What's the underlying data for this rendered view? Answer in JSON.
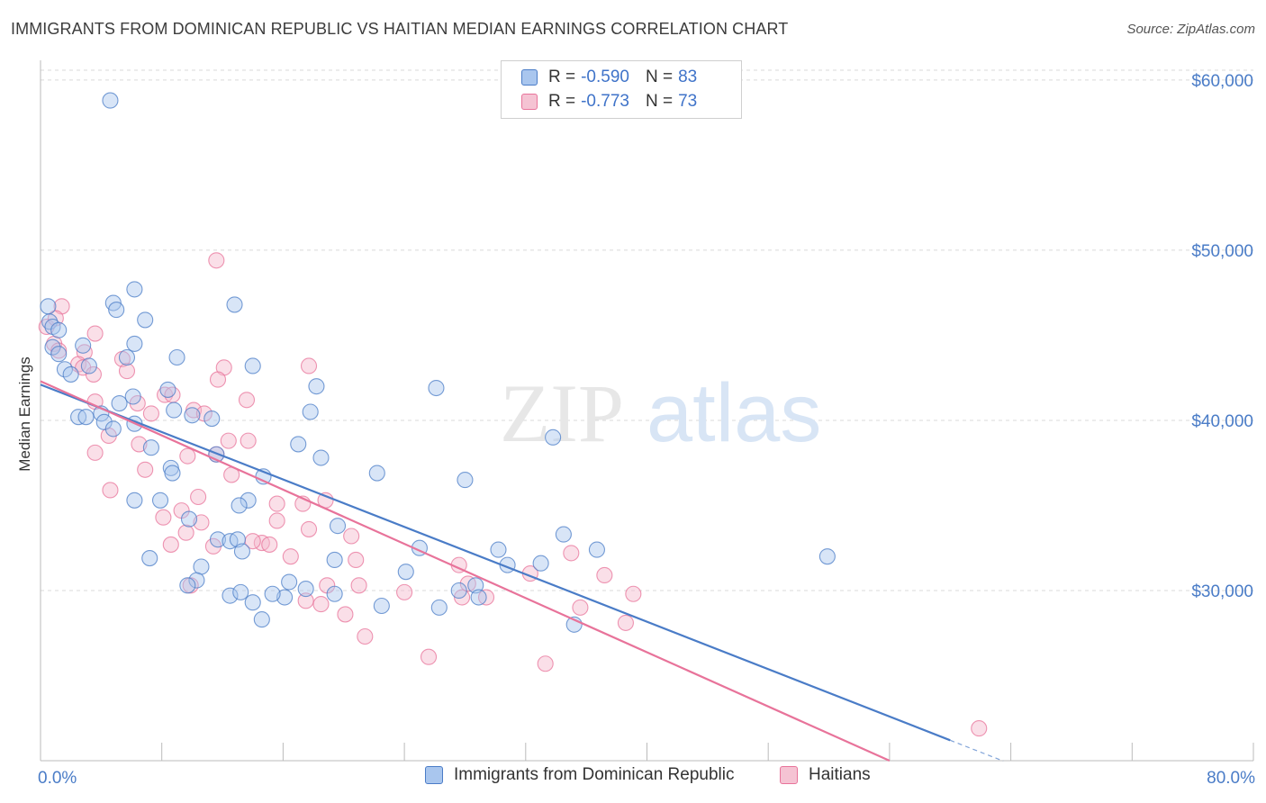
{
  "title": "IMMIGRANTS FROM DOMINICAN REPUBLIC VS HAITIAN MEDIAN EARNINGS CORRELATION CHART",
  "source": "Source: ZipAtlas.com",
  "watermark": {
    "part1": "ZIP",
    "part2": "atlas"
  },
  "colors": {
    "blue": "#4a7cc7",
    "blue_fill": "#a9c6ee",
    "pink": "#e8739a",
    "pink_fill": "#f5b8cb",
    "grid": "#d9d9d9"
  },
  "legend": {
    "items": [
      {
        "r_label": "R = ",
        "r_value": "-0.590",
        "n_label": "N = ",
        "n_value": "83"
      },
      {
        "r_label": "R = ",
        "r_value": "-0.773",
        "n_label": "N = ",
        "n_value": "73"
      }
    ]
  },
  "bottom_legend": [
    "Immigrants from Dominican Republic",
    "Haitians"
  ],
  "chart_data": {
    "type": "scatter",
    "xlabel": "",
    "ylabel": "Median Earnings",
    "xlim": [
      0,
      80
    ],
    "ylim": [
      20000,
      61000
    ],
    "x_tick_labels": [
      "0.0%",
      "80.0%"
    ],
    "y_ticks": [
      {
        "value": 30000,
        "label": "$30,000"
      },
      {
        "value": 40000,
        "label": "$40,000"
      },
      {
        "value": 50000,
        "label": "$50,000"
      },
      {
        "value": 60000,
        "label": "$60,000"
      }
    ],
    "grid": true,
    "series": [
      {
        "name": "Immigrants from Dominican Republic",
        "color": "#4a7cc7",
        "trend": {
          "x0": 0,
          "y0": 42100,
          "x1": 60,
          "y1": 21200,
          "dash_to_x": 63.5
        },
        "points": [
          [
            4.6,
            58800
          ],
          [
            0.5,
            46700
          ],
          [
            4.8,
            46900
          ],
          [
            5.0,
            46500
          ],
          [
            6.2,
            47700
          ],
          [
            6.9,
            45900
          ],
          [
            12.8,
            46800
          ],
          [
            0.6,
            45800
          ],
          [
            0.8,
            45500
          ],
          [
            1.2,
            45300
          ],
          [
            0.8,
            44300
          ],
          [
            2.8,
            44400
          ],
          [
            6.2,
            44500
          ],
          [
            1.2,
            43900
          ],
          [
            5.7,
            43700
          ],
          [
            9.0,
            43700
          ],
          [
            1.6,
            43000
          ],
          [
            2.0,
            42700
          ],
          [
            3.2,
            43200
          ],
          [
            14.0,
            43200
          ],
          [
            18.2,
            42000
          ],
          [
            26.1,
            41900
          ],
          [
            5.2,
            41000
          ],
          [
            8.4,
            41800
          ],
          [
            6.1,
            41400
          ],
          [
            2.5,
            40200
          ],
          [
            3.0,
            40200
          ],
          [
            4.0,
            40400
          ],
          [
            8.8,
            40600
          ],
          [
            10.0,
            40300
          ],
          [
            17.8,
            40500
          ],
          [
            11.3,
            40100
          ],
          [
            4.2,
            39900
          ],
          [
            4.8,
            39500
          ],
          [
            6.2,
            39800
          ],
          [
            33.8,
            39000
          ],
          [
            7.3,
            38400
          ],
          [
            17.0,
            38600
          ],
          [
            11.6,
            38000
          ],
          [
            18.5,
            37800
          ],
          [
            8.6,
            37200
          ],
          [
            8.7,
            36900
          ],
          [
            14.7,
            36700
          ],
          [
            22.2,
            36900
          ],
          [
            28.0,
            36500
          ],
          [
            6.2,
            35300
          ],
          [
            7.9,
            35300
          ],
          [
            13.7,
            35300
          ],
          [
            13.1,
            35000
          ],
          [
            9.8,
            34200
          ],
          [
            19.6,
            33800
          ],
          [
            34.5,
            33300
          ],
          [
            25.0,
            32500
          ],
          [
            30.2,
            32400
          ],
          [
            36.7,
            32400
          ],
          [
            7.2,
            31900
          ],
          [
            11.7,
            33000
          ],
          [
            12.5,
            32900
          ],
          [
            13.0,
            33000
          ],
          [
            13.3,
            32300
          ],
          [
            19.4,
            31800
          ],
          [
            33.0,
            31600
          ],
          [
            30.8,
            31500
          ],
          [
            10.6,
            31400
          ],
          [
            24.1,
            31100
          ],
          [
            10.3,
            30600
          ],
          [
            9.7,
            30300
          ],
          [
            16.4,
            30500
          ],
          [
            16.1,
            29600
          ],
          [
            17.5,
            30100
          ],
          [
            19.4,
            29800
          ],
          [
            22.5,
            29100
          ],
          [
            27.6,
            30000
          ],
          [
            28.7,
            30300
          ],
          [
            26.3,
            29000
          ],
          [
            28.9,
            29600
          ],
          [
            12.5,
            29700
          ],
          [
            13.2,
            29900
          ],
          [
            14.0,
            29300
          ],
          [
            14.6,
            28300
          ],
          [
            15.3,
            29800
          ],
          [
            35.2,
            28000
          ],
          [
            51.9,
            32000
          ]
        ]
      },
      {
        "name": "Haitians",
        "color": "#e8739a",
        "trend": {
          "x0": 0,
          "y0": 42300,
          "x1": 56,
          "y1": 20000
        },
        "points": [
          [
            0.4,
            45500
          ],
          [
            1.4,
            46700
          ],
          [
            1.0,
            46000
          ],
          [
            3.6,
            45100
          ],
          [
            0.9,
            44500
          ],
          [
            1.2,
            44100
          ],
          [
            2.9,
            44000
          ],
          [
            5.4,
            43600
          ],
          [
            2.5,
            43300
          ],
          [
            2.8,
            43100
          ],
          [
            3.5,
            42700
          ],
          [
            5.7,
            42900
          ],
          [
            12.1,
            43100
          ],
          [
            11.7,
            42400
          ],
          [
            8.2,
            41500
          ],
          [
            8.7,
            41500
          ],
          [
            13.6,
            41200
          ],
          [
            3.6,
            41100
          ],
          [
            6.4,
            41000
          ],
          [
            10.1,
            40600
          ],
          [
            10.8,
            40400
          ],
          [
            7.3,
            40400
          ],
          [
            17.7,
            43200
          ],
          [
            4.5,
            39100
          ],
          [
            6.5,
            38600
          ],
          [
            12.4,
            38800
          ],
          [
            3.6,
            38100
          ],
          [
            11.6,
            38000
          ],
          [
            13.7,
            38800
          ],
          [
            9.7,
            37900
          ],
          [
            6.9,
            37100
          ],
          [
            12.6,
            36800
          ],
          [
            4.6,
            35900
          ],
          [
            10.4,
            35500
          ],
          [
            15.6,
            35100
          ],
          [
            17.3,
            35100
          ],
          [
            18.8,
            35300
          ],
          [
            9.3,
            34700
          ],
          [
            8.1,
            34300
          ],
          [
            10.6,
            34000
          ],
          [
            15.6,
            34100
          ],
          [
            17.7,
            33600
          ],
          [
            9.6,
            33400
          ],
          [
            20.5,
            33200
          ],
          [
            8.6,
            32700
          ],
          [
            14.6,
            32800
          ],
          [
            15.1,
            32700
          ],
          [
            16.5,
            32000
          ],
          [
            11.4,
            32600
          ],
          [
            20.8,
            31800
          ],
          [
            27.6,
            31500
          ],
          [
            35.0,
            32200
          ],
          [
            32.3,
            31000
          ],
          [
            37.2,
            30900
          ],
          [
            18.9,
            30300
          ],
          [
            21.0,
            30300
          ],
          [
            24.0,
            29900
          ],
          [
            27.8,
            29600
          ],
          [
            28.2,
            30400
          ],
          [
            29.4,
            29600
          ],
          [
            35.6,
            29000
          ],
          [
            39.1,
            29800
          ],
          [
            17.5,
            29400
          ],
          [
            18.5,
            29200
          ],
          [
            20.1,
            28600
          ],
          [
            38.6,
            28100
          ],
          [
            21.4,
            27300
          ],
          [
            25.6,
            26100
          ],
          [
            33.3,
            25700
          ],
          [
            9.9,
            30300
          ],
          [
            14.0,
            32900
          ],
          [
            61.9,
            21900
          ],
          [
            11.6,
            49400
          ]
        ]
      }
    ]
  }
}
